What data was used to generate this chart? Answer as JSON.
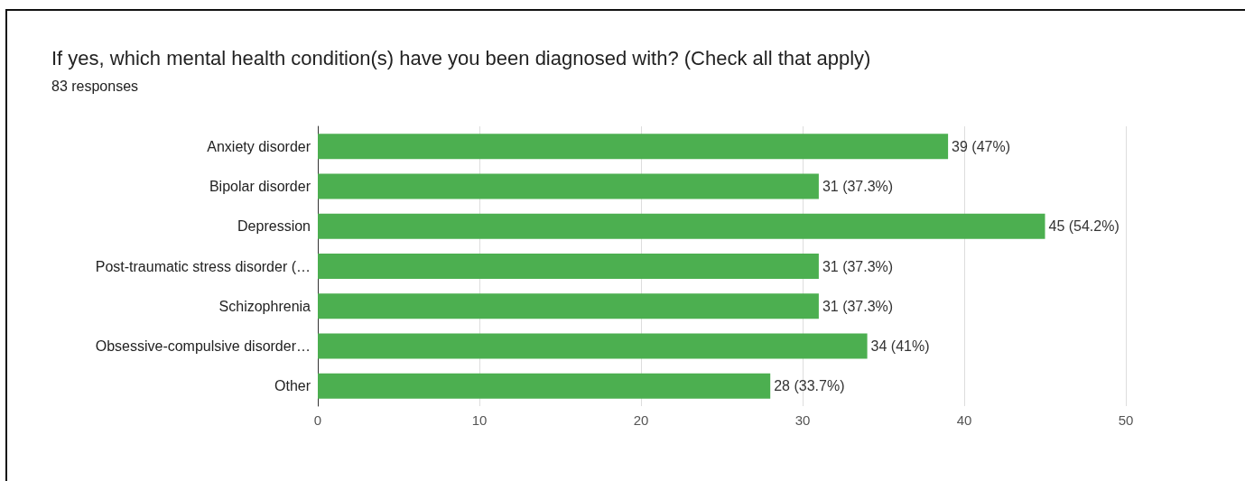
{
  "chart_data": {
    "type": "bar",
    "orientation": "horizontal",
    "title": "If yes, which mental health condition(s) have you been diagnosed with? (Check all that apply)",
    "subtitle": "83 responses",
    "categories": [
      "Anxiety disorder",
      "Bipolar disorder",
      "Depression",
      "Post-traumatic stress disorder (…",
      "Schizophrenia",
      "Obsessive-compulsive disorder…",
      "Other"
    ],
    "values": [
      39,
      31,
      45,
      31,
      31,
      34,
      28
    ],
    "value_labels": [
      "39 (47%)",
      "31 (37.3%)",
      "45 (54.2%)",
      "31 (37.3%)",
      "31 (37.3%)",
      "34 (41%)",
      "28 (33.7%)"
    ],
    "color": "#4caf50",
    "xlim": [
      0,
      50
    ],
    "xticks": [
      0,
      10,
      20,
      30,
      40,
      50
    ],
    "grid": true
  }
}
